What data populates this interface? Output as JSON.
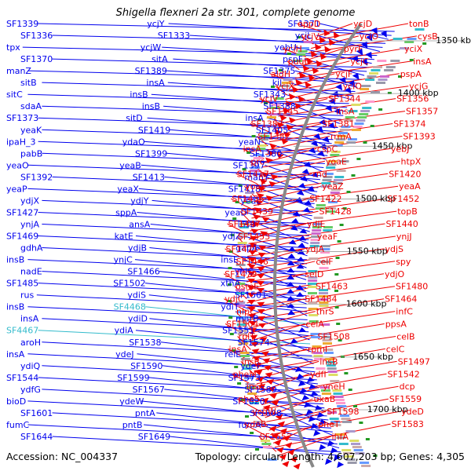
{
  "title": "Shigella flexneri 2a str. 301, complete genome",
  "footer": {
    "accession": "Accession: NC_004337",
    "topology": "Topology: circular; Length: 4,607,203 bp; Genes: 4,305"
  },
  "colors": {
    "forward_strand": "#0000ee",
    "reverse_strand": "#ee0000",
    "rna": "#33bbcc",
    "backbone": "#888888"
  },
  "ticks": [
    "1350 kbp",
    "1400 kbp",
    "1450 kbp",
    "1500 kbp",
    "1550 kbp",
    "1600 kbp",
    "1650 kbp",
    "1700 kbp"
  ],
  "left_labels": [
    "SF1339",
    "ycjY",
    "SF1371",
    "SF1336",
    "SF1333",
    "ycjL",
    "tpx",
    "ycjW",
    "yebU",
    "SF1370",
    "sitA",
    "pspF",
    "manZ",
    "SF1389",
    "SF1375",
    "sitB",
    "insA",
    "kil",
    "sitC",
    "insB",
    "SF1343",
    "sdaA",
    "insB",
    "SF1388",
    "SF1373",
    "sitD",
    "insA",
    "yeaK",
    "SF1419",
    "SF1405",
    "ipaH_3",
    "ydaO",
    "yeaN",
    "pabB",
    "SF1399",
    "SF1380",
    "yeaO",
    "yeaB",
    "SF1397",
    "SF1392",
    "SF1413",
    "manY",
    "yeaP",
    "yeaX",
    "SF1418",
    "ydjX",
    "ydjY",
    "yeaL",
    "SF1427",
    "sppA",
    "yeaD",
    "ynjA",
    "ansA",
    "insB",
    "SF1469",
    "katE",
    "ydjZ",
    "gdhA",
    "ydjB",
    "gapA",
    "insB",
    "ynjC",
    "insE",
    "nadE",
    "SF1466",
    "yniC",
    "SF1485",
    "SF1502",
    "xthA",
    "rus",
    "ydiS",
    "SF1501",
    "insB",
    "SF4468",
    "ydiT",
    "insA",
    "ydiD",
    "marB",
    "SF4467",
    "ydiA",
    "SF1551",
    "aroH",
    "SF1538",
    "SF1574",
    "insA",
    "ydeJ",
    "relE",
    "ydiQ",
    "SF1590",
    "ydeF",
    "SF1544",
    "SF1599",
    "SF1573",
    "ydfG",
    "SF1567",
    "SF1589",
    "bioD",
    "ydeW",
    "SF1620",
    "SF1601",
    "pntA",
    "SF1608",
    "fumC",
    "pntB",
    "fumA",
    "SF1644",
    "SF1649"
  ],
  "right_labels": [
    "oppD",
    "ycjD",
    "tonB",
    "ycjV",
    "yciO",
    "cysB",
    "yciH",
    "pyrF",
    "yciX",
    "puuD",
    "ycjC",
    "insA",
    "aldH",
    "ycjF",
    "pspA",
    "ycjX",
    "yciO",
    "ycjG",
    "yciV",
    "SF1344",
    "SF1356",
    "SF1345",
    "insA",
    "SF1357",
    "SF1387",
    "SF1381",
    "SF1374",
    "SF1382",
    "rrmA",
    "SF1393",
    "insA",
    "cspC",
    "yebJ",
    "prc",
    "yoaE",
    "htpX",
    "SF1417",
    "rnd",
    "SF1420",
    "yoaF",
    "yeaZ",
    "yeaA",
    "SF1436",
    "SF1422",
    "SF1452",
    "SF1439",
    "SF1428",
    "topB",
    "SF1447",
    "ydjE",
    "SF1440",
    "SF1453",
    "yeaF",
    "ynjJ",
    "SF1471",
    "ydjA",
    "ydjS",
    "SF1446",
    "celF",
    "spy",
    "SF1479",
    "seID",
    "ydjO",
    "osmE",
    "SF1463",
    "SF1480",
    "ydjC",
    "SF1484",
    "SF1464",
    "nlpC",
    "thrS",
    "infC",
    "SF1504",
    "celA",
    "ppsA",
    "rplT",
    "SF1508",
    "celB",
    "insA",
    "rpmI",
    "celC",
    "insB",
    "insB",
    "SF1497",
    "pheM",
    "ydfI",
    "SF1542",
    "insA",
    "yneH",
    "dcp",
    "pheS",
    "uxaB",
    "SF1559",
    "ycgW",
    "SF1598",
    "ydeD",
    "ydeB",
    "pheT",
    "SF1583",
    "SF1552",
    "ihfA"
  ]
}
